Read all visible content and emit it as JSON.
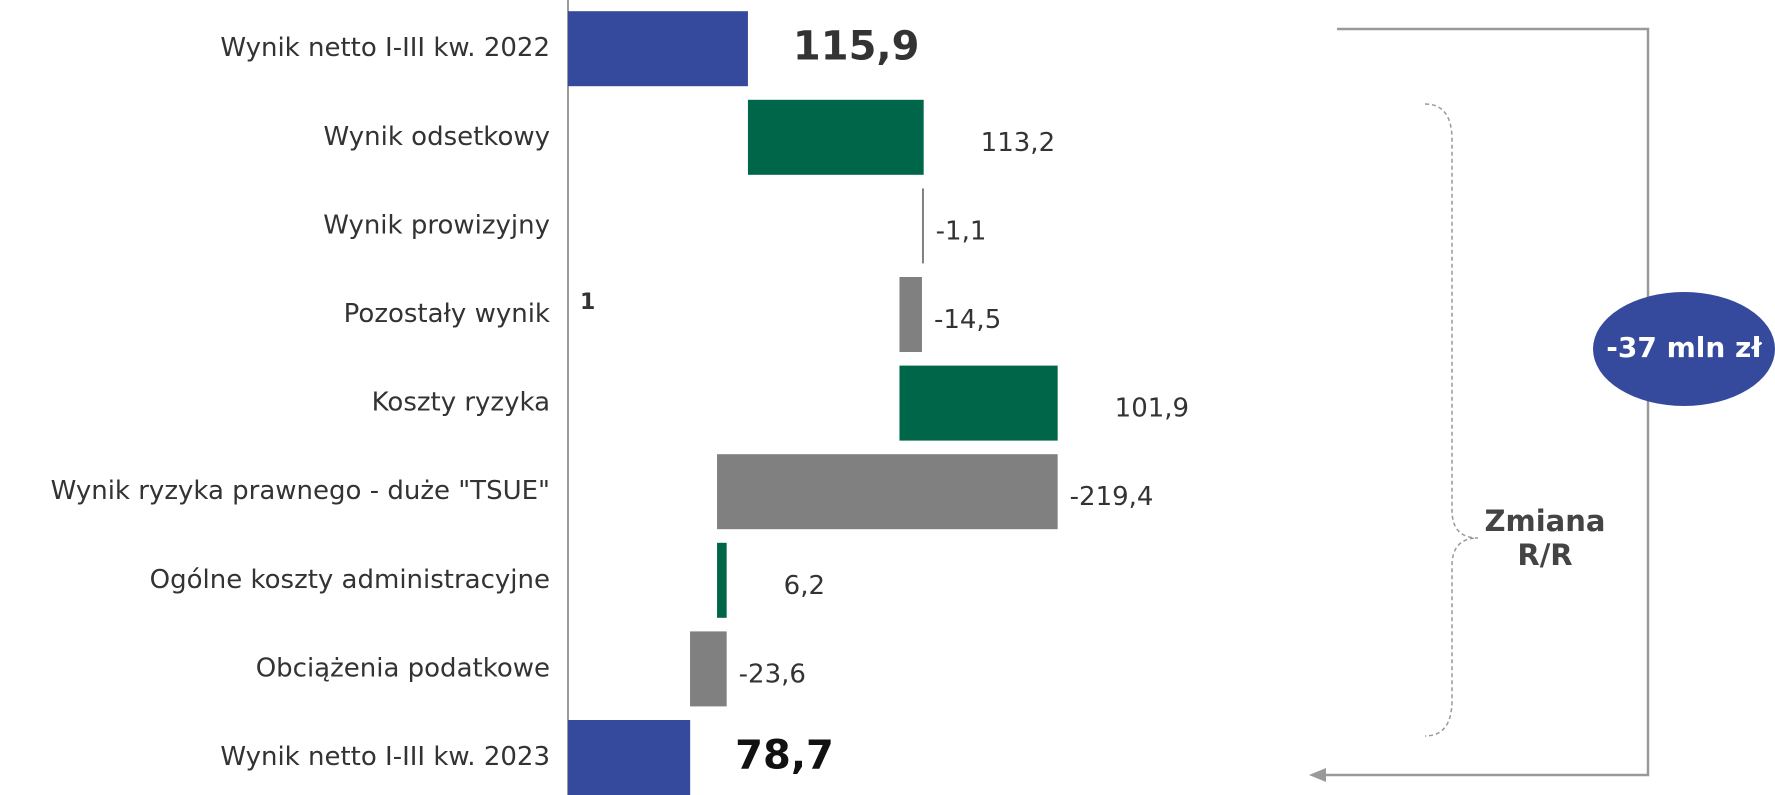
{
  "chart_data": {
    "type": "waterfall",
    "categories": [
      "Wynik netto I-III kw. 2022",
      "Wynik odsetkowy",
      "Wynik prowizyjny",
      "Pozostały wynik",
      "Koszty ryzyka",
      "Wynik ryzyka prawnego - duże \"TSUE\"",
      "Ogólne koszty administracyjne",
      "Obciążenia podatkowe ",
      "Wynik netto I-III kw. 2023"
    ],
    "values": [
      115.9,
      113.2,
      -1.1,
      -14.5,
      101.9,
      -219.4,
      6.2,
      -23.6,
      78.7
    ],
    "value_labels": [
      "115,9",
      "113,2",
      "-1,1",
      "-14,5",
      "101,9",
      "-219,4",
      "6,2",
      "-23,6",
      "78,7"
    ],
    "is_total": [
      true,
      false,
      false,
      false,
      false,
      false,
      false,
      false,
      true
    ],
    "total_color": "#354a9c",
    "increase_color": "#00664a",
    "decrease_color": "#808080",
    "xlim": [
      0,
      400
    ],
    "annotations": [
      "1",
      "Zmiana",
      "R/R",
      "-37 mln zł"
    ]
  }
}
